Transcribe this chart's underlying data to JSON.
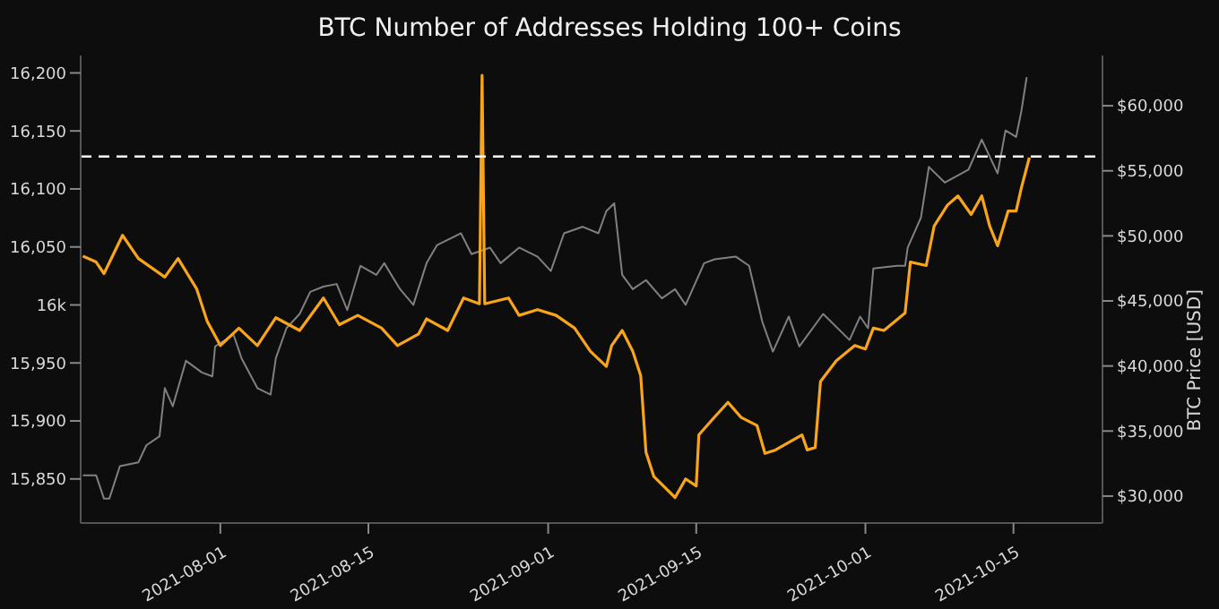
{
  "chart_data": {
    "type": "line",
    "title": "BTC Number of Addresses Holding 100+ Coins",
    "y2label": "BTC Price [USD]",
    "xlim": [
      "2021-07-18T19:00",
      "2021-10-23T10:00"
    ],
    "xticks": [
      "2021-08-01",
      "2021-08-15",
      "2021-09-01",
      "2021-09-15",
      "2021-10-01",
      "2021-10-15"
    ],
    "ylim": [
      15812,
      16215
    ],
    "yticks": [
      {
        "value": 15850,
        "label": "15,850"
      },
      {
        "value": 15900,
        "label": "15,900"
      },
      {
        "value": 15950,
        "label": "15,950"
      },
      {
        "value": 16000,
        "label": "16k"
      },
      {
        "value": 16050,
        "label": "16,050"
      },
      {
        "value": 16100,
        "label": "16,100"
      },
      {
        "value": 16150,
        "label": "16,150"
      },
      {
        "value": 16200,
        "label": "16,200"
      }
    ],
    "y2lim": [
      27930,
      63860
    ],
    "y2ticks": [
      {
        "value": 30000,
        "label": "$30,000"
      },
      {
        "value": 35000,
        "label": "$35,000"
      },
      {
        "value": 40000,
        "label": "$40,000"
      },
      {
        "value": 45000,
        "label": "$45,000"
      },
      {
        "value": 50000,
        "label": "$50,000"
      },
      {
        "value": 55000,
        "label": "$55,000"
      },
      {
        "value": 60000,
        "label": "$60,000"
      }
    ],
    "legend": false,
    "ref_lines": [
      {
        "axis": "y",
        "value": 16128,
        "color": "#ffffff",
        "line_style": "dashed"
      }
    ],
    "series": [
      {
        "color": "#808080",
        "axis": "y2",
        "x": [
          "2021-07-19",
          "2021-07-20T06:00",
          "2021-07-21",
          "2021-07-21T12:00",
          "2021-07-22T12:00",
          "2021-07-24T06:00",
          "2021-07-25",
          "2021-07-26T06:00",
          "2021-07-26T18:00",
          "2021-07-27T12:00",
          "2021-07-28T18:00",
          "2021-07-30T06:00",
          "2021-07-31T06:00",
          "2021-07-31T12:00",
          "2021-08-02T06:00",
          "2021-08-03",
          "2021-08-04T12:00",
          "2021-08-05T18:00",
          "2021-08-06T06:00",
          "2021-08-07T06:00",
          "2021-08-08T12:00",
          "2021-08-09T12:00",
          "2021-08-10T18:00",
          "2021-08-12",
          "2021-08-13",
          "2021-08-14T06:00",
          "2021-08-15T18:00",
          "2021-08-16T12:00",
          "2021-08-18",
          "2021-08-19T06:00",
          "2021-08-20T12:00",
          "2021-08-21T12:00",
          "2021-08-23T18:00",
          "2021-08-24T18:00",
          "2021-08-26T12:00",
          "2021-08-27T12:00",
          "2021-08-29T06:00",
          "2021-08-31",
          "2021-09-01T06:00",
          "2021-09-02T12:00",
          "2021-09-04T06:00",
          "2021-09-05T18:00",
          "2021-09-06T12:00",
          "2021-09-07T06:00",
          "2021-09-08",
          "2021-09-09",
          "2021-09-10T06:00",
          "2021-09-11T18:00",
          "2021-09-13",
          "2021-09-14",
          "2021-09-15T18:00",
          "2021-09-16T18:00",
          "2021-09-18T18:00",
          "2021-09-20",
          "2021-09-21T06:00",
          "2021-09-22T06:00",
          "2021-09-23T18:00",
          "2021-09-24T18:00",
          "2021-09-27",
          "2021-09-29T12:00",
          "2021-09-30T12:00",
          "2021-10-01T06:00",
          "2021-10-01T18:00",
          "2021-10-04",
          "2021-10-04T18:00",
          "2021-10-05",
          "2021-10-06T06:00",
          "2021-10-07",
          "2021-10-08T12:00",
          "2021-10-10T18:00",
          "2021-10-12",
          "2021-10-13T12:00",
          "2021-10-14T06:00",
          "2021-10-15T06:00",
          "2021-10-15T18:00",
          "2021-10-16T06:00"
        ],
        "values": [
          31600,
          31600,
          29800,
          29800,
          32300,
          32600,
          33900,
          34600,
          38300,
          36900,
          40400,
          39500,
          39200,
          41500,
          42400,
          40600,
          38300,
          37800,
          40600,
          42900,
          44000,
          45700,
          46100,
          46300,
          44300,
          47700,
          47000,
          47900,
          45900,
          44700,
          47900,
          49300,
          50200,
          48600,
          49100,
          47900,
          49100,
          48400,
          47300,
          50200,
          50700,
          50200,
          51900,
          52500,
          47000,
          45900,
          46600,
          45200,
          45900,
          44700,
          47900,
          48200,
          48400,
          47700,
          43400,
          41100,
          43800,
          41500,
          44000,
          42000,
          43800,
          42900,
          47500,
          47700,
          47700,
          49100,
          51400,
          55300,
          54100,
          55100,
          57400,
          54800,
          58100,
          57600,
          59600,
          62200
        ]
      },
      {
        "color": "#f9a51a",
        "x": [
          "2021-07-19",
          "2021-07-20T06:00",
          "2021-07-21",
          "2021-07-22T18:00",
          "2021-07-24T06:00",
          "2021-07-26T18:00",
          "2021-07-28",
          "2021-07-29T18:00",
          "2021-07-30T18:00",
          "2021-08-01",
          "2021-08-02T18:00",
          "2021-08-04T12:00",
          "2021-08-06T06:00",
          "2021-08-08T12:00",
          "2021-08-10T18:00",
          "2021-08-12T06:00",
          "2021-08-14",
          "2021-08-16T06:00",
          "2021-08-17T18:00",
          "2021-08-19T18:00",
          "2021-08-20T12:00",
          "2021-08-22T12:00",
          "2021-08-24",
          "2021-08-25T12:00",
          "2021-08-25T18:00",
          "2021-08-26",
          "2021-08-28T06:00",
          "2021-08-29T06:00",
          "2021-08-31",
          "2021-09-01T18:00",
          "2021-09-03T12:00",
          "2021-09-05",
          "2021-09-06T12:00",
          "2021-09-07",
          "2021-09-08",
          "2021-09-09",
          "2021-09-09T18:00",
          "2021-09-10T06:00",
          "2021-09-11",
          "2021-09-13",
          "2021-09-14",
          "2021-09-15",
          "2021-09-15T06:00",
          "2021-09-16T12:00",
          "2021-09-18",
          "2021-09-19T06:00",
          "2021-09-20T18:00",
          "2021-09-21T12:00",
          "2021-09-22T12:00",
          "2021-09-25",
          "2021-09-25T12:00",
          "2021-09-26T06:00",
          "2021-09-26T18:00",
          "2021-09-28T06:00",
          "2021-09-30",
          "2021-10-01",
          "2021-10-01T18:00",
          "2021-10-02T18:00",
          "2021-10-04T18:00",
          "2021-10-05T06:00",
          "2021-10-06T18:00",
          "2021-10-07T12:00",
          "2021-10-08T18:00",
          "2021-10-09T18:00",
          "2021-10-11",
          "2021-10-12",
          "2021-10-12T18:00",
          "2021-10-13T12:00",
          "2021-10-14T12:00",
          "2021-10-15T06:00",
          "2021-10-15T18:00",
          "2021-10-16T12:00"
        ],
        "values": [
          16042,
          16037,
          16027,
          16060,
          16040,
          16024,
          16040,
          16014,
          15986,
          15965,
          15980,
          15965,
          15989,
          15978,
          16006,
          15983,
          15991,
          15980,
          15965,
          15975,
          15988,
          15978,
          16006,
          16001,
          16198,
          16001,
          16006,
          15991,
          15996,
          15991,
          15980,
          15960,
          15947,
          15965,
          15978,
          15960,
          15939,
          15873,
          15852,
          15834,
          15850,
          15844,
          15888,
          15901,
          15916,
          15903,
          15896,
          15872,
          15875,
          15888,
          15875,
          15877,
          15934,
          15952,
          15965,
          15962,
          15980,
          15978,
          15993,
          16037,
          16034,
          16068,
          16086,
          16094,
          16078,
          16094,
          16068,
          16051,
          16081,
          16081,
          16101,
          16127
        ]
      }
    ]
  }
}
